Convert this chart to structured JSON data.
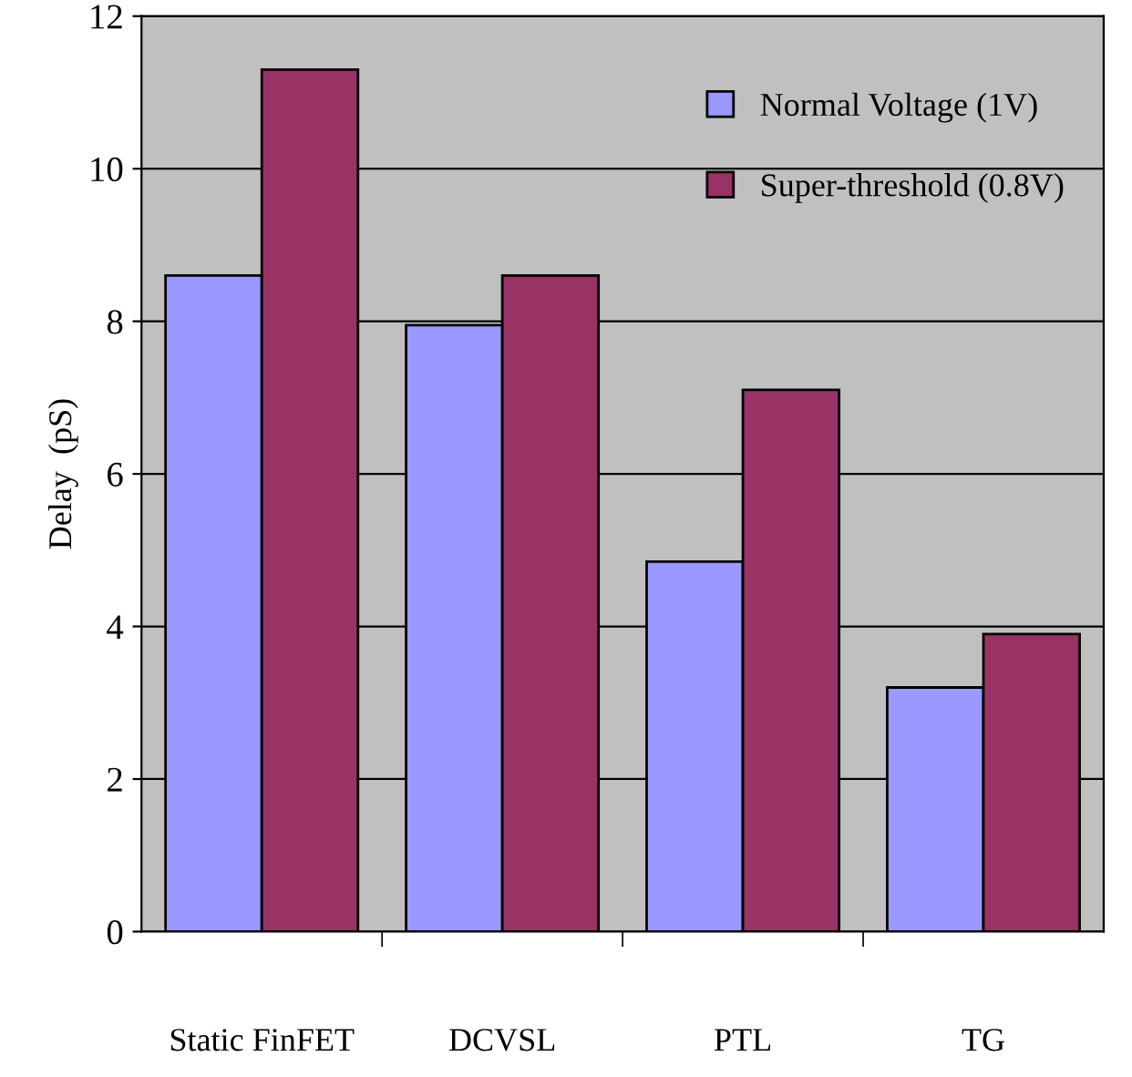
{
  "chart_data": {
    "type": "bar",
    "ylabel": "Delay  (pS)",
    "categories": [
      "Static FinFET",
      "DCVSL",
      "PTL",
      "TG"
    ],
    "series": [
      {
        "name": "Normal Voltage (1V)",
        "color": "#9999ff",
        "values": [
          8.6,
          7.95,
          4.85,
          3.2
        ]
      },
      {
        "name": "Super-threshold (0.8V)",
        "color": "#993366",
        "values": [
          11.3,
          8.6,
          7.1,
          3.9
        ]
      }
    ],
    "ylim": [
      0,
      12
    ],
    "yticks": [
      0,
      2,
      4,
      6,
      8,
      10,
      12
    ],
    "grid": "y",
    "legend": "top right"
  }
}
